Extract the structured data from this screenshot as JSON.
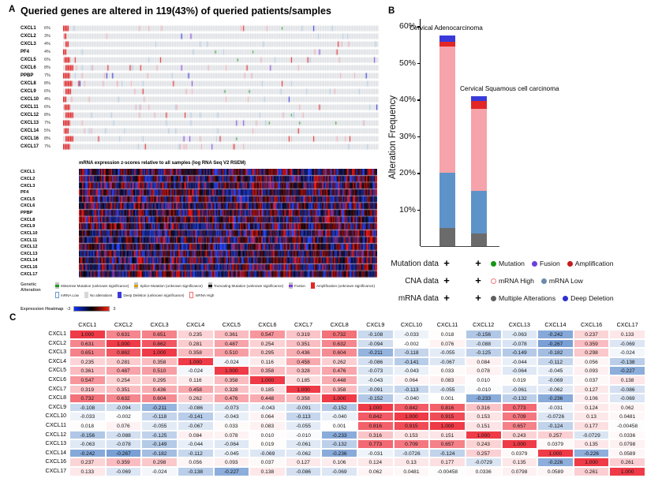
{
  "panelA": {
    "label": "A",
    "title": "Queried genes are altered in 119(43%) of queried patients/samples",
    "genes": [
      {
        "name": "CXCL1",
        "percent": "6%"
      },
      {
        "name": "CXCL2",
        "percent": "3%"
      },
      {
        "name": "CXCL3",
        "percent": "4%"
      },
      {
        "name": "PF4",
        "percent": "4%"
      },
      {
        "name": "CXCL5",
        "percent": "6%"
      },
      {
        "name": "CXCL6",
        "percent": "8%"
      },
      {
        "name": "PPBP",
        "percent": "7%"
      },
      {
        "name": "CXCL8",
        "percent": "8%"
      },
      {
        "name": "CXCL9",
        "percent": "6%"
      },
      {
        "name": "CXCL10",
        "percent": "4%"
      },
      {
        "name": "CXCL11",
        "percent": "6%"
      },
      {
        "name": "CXCL12",
        "percent": "8%"
      },
      {
        "name": "CXCL13",
        "percent": "7%"
      },
      {
        "name": "CXCL14",
        "percent": "5%"
      },
      {
        "name": "CXCL16",
        "percent": "8%"
      },
      {
        "name": "CXCL17",
        "percent": "7%"
      }
    ],
    "heatmap_title": "mRNA expression z-scores relative to all samples (log RNA Seq V2 RSEM)",
    "legend_title": "Genetic Alteration",
    "legend_rows": [
      [
        {
          "label": "Missense Mutation (unknown significance)",
          "style": "band",
          "color": "#1c9a1c"
        },
        {
          "label": "Splice Mutation (unknown significance)",
          "style": "band",
          "color": "#d8a013"
        },
        {
          "label": "Truncating Mutation (unknown significance)",
          "style": "band",
          "color": "#1a1a1a"
        },
        {
          "label": "Fusion",
          "style": "band",
          "color": "#7f3be0"
        },
        {
          "label": "Amplification (unknown significance)",
          "style": "solid",
          "color": "#e22726"
        }
      ],
      [
        {
          "label": "mRNA Low",
          "style": "outline",
          "color": "#6699cc"
        },
        {
          "label": "No alterations",
          "style": "solid",
          "color": "#d7d7d7"
        },
        {
          "label": "Deep Deletion (unknown significance)",
          "style": "solid",
          "color": "#3a3ad9"
        },
        {
          "label": "mRNA High",
          "style": "outline",
          "color": "#f07070"
        }
      ]
    ],
    "expression_label": "Expression Heatmap",
    "scale_min": "-3",
    "scale_max": "3",
    "oncoprint_colors": {
      "no_alteration": "#dadde1",
      "amplification": "#e31a1c",
      "deep_deletion": "#2b2bd5",
      "mrna_high": "#f4a9b1",
      "mrna_low": "#aecbe8",
      "mutation": "#119c11",
      "fusion": "#7f3be0"
    }
  },
  "panelB": {
    "label": "B"
  },
  "panelC": {
    "label": "C"
  },
  "chart_data": [
    {
      "type": "bar",
      "subtype": "stacked",
      "title": "",
      "xlabel": "",
      "ylabel": "Alteration Frequency",
      "ylim": [
        0,
        62
      ],
      "yticks": [
        10,
        20,
        30,
        40,
        50,
        60
      ],
      "ytick_suffix": "%",
      "grid": false,
      "categories": [
        "Cervical Adenocarcinoma",
        "Cervical Squamous cell carcinoma"
      ],
      "totals_percent": [
        57.5,
        41
      ],
      "series": [
        {
          "name": "Multiple Alterations",
          "color": "#6b6b6b",
          "values": [
            5.0,
            3.5
          ]
        },
        {
          "name": "mRNA Low",
          "color": "#5e93c9",
          "values": [
            15.0,
            11.5
          ]
        },
        {
          "name": "mRNA High",
          "color": "#f6a3ab",
          "values": [
            34.5,
            22.5
          ]
        },
        {
          "name": "Amplification",
          "color": "#e22726",
          "values": [
            1.2,
            2.2
          ]
        },
        {
          "name": "Deep Deletion",
          "color": "#3a3ad9",
          "values": [
            1.8,
            1.3
          ]
        }
      ],
      "data_rows": [
        {
          "label": "Mutation data",
          "values": [
            "+",
            "+"
          ]
        },
        {
          "label": "CNA data",
          "values": [
            "+",
            "+"
          ]
        },
        {
          "label": "mRNA data",
          "values": [
            "+",
            "+"
          ]
        }
      ],
      "legend_rows": [
        [
          {
            "label": "Mutation",
            "color": "#159615",
            "style": "solid"
          },
          {
            "label": "Fusion",
            "color": "#6f3ddb",
            "style": "solid"
          },
          {
            "label": "Amplification",
            "color": "#c61b1b",
            "style": "solid"
          }
        ],
        [
          {
            "label": "mRNA High",
            "color": "#ef7a7a",
            "style": "open"
          },
          {
            "label": "mRNA Low",
            "color": "#6d8bab",
            "style": "solid"
          }
        ],
        [
          {
            "label": "Multiple Alterations",
            "color": "#5f5f5f",
            "style": "solid"
          },
          {
            "label": "Deep Deletion",
            "color": "#2f2fd0",
            "style": "solid"
          }
        ]
      ]
    },
    {
      "type": "heatmap",
      "title": "",
      "positive_color": "#ef3b47",
      "negative_color": "#3e76c2",
      "labels": [
        "CXCL1",
        "CXCL2",
        "CXCL3",
        "CXCL4",
        "CXCL5",
        "CXCL6",
        "CXCL7",
        "CXCL8",
        "CXCL9",
        "CXCL10",
        "CXCL11",
        "CXCL12",
        "CXCL13",
        "CXCL14",
        "CXCL16",
        "CXCL17"
      ],
      "values_text": [
        [
          "1.000",
          "0.631",
          "0.651",
          "0.235",
          "0.361",
          "0.547",
          "0.319",
          "0.732",
          "-0.108",
          "-0.033",
          "0.018",
          "-0.156",
          "-0.063",
          "-0.242",
          "0.237",
          "0.133"
        ],
        [
          "0.631",
          "1.000",
          "0.862",
          "0.281",
          "0.487",
          "0.254",
          "0.351",
          "0.632",
          "-0.094",
          "-0.002",
          "0.076",
          "-0.088",
          "-0.078",
          "-0.267",
          "0.359",
          "-0.069"
        ],
        [
          "0.651",
          "0.862",
          "1.000",
          "0.358",
          "0.510",
          "0.295",
          "0.436",
          "0.604",
          "-0.211",
          "-0.118",
          "-0.055",
          "-0.125",
          "-0.149",
          "-0.182",
          "0.298",
          "-0.024"
        ],
        [
          "0.235",
          "0.281",
          "0.358",
          "1.000",
          "-0.024",
          "0.116",
          "0.458",
          "0.262",
          "-0.086",
          "-0.141",
          "-0.067",
          "0.084",
          "-0.044",
          "-0.112",
          "0.056",
          "-0.138"
        ],
        [
          "0.361",
          "0.487",
          "0.510",
          "-0.024",
          "1.000",
          "0.358",
          "0.328",
          "0.476",
          "-0.073",
          "-0.043",
          "0.033",
          "0.078",
          "-0.064",
          "-0.045",
          "0.093",
          "-0.227"
        ],
        [
          "0.547",
          "0.254",
          "0.295",
          "0.116",
          "0.358",
          "1.000",
          "0.185",
          "0.448",
          "-0.043",
          "0.064",
          "0.083",
          "0.010",
          "0.019",
          "-0.069",
          "0.037",
          "0.138"
        ],
        [
          "0.319",
          "0.351",
          "0.436",
          "0.458",
          "0.328",
          "0.185",
          "1.000",
          "0.358",
          "-0.091",
          "-0.113",
          "-0.055",
          "-0.010",
          "-0.061",
          "-0.062",
          "0.127",
          "-0.086"
        ],
        [
          "0.732",
          "0.632",
          "0.604",
          "0.262",
          "0.476",
          "0.448",
          "0.358",
          "1.000",
          "-0.152",
          "-0.040",
          "0.001",
          "-0.233",
          "-0.132",
          "-0.236",
          "0.106",
          "-0.069"
        ],
        [
          "-0.108",
          "-0.094",
          "-0.211",
          "-0.086",
          "-0.073",
          "-0.043",
          "-0.091",
          "-0.152",
          "1.000",
          "0.842",
          "0.816",
          "0.316",
          "0.773",
          "-0.031",
          "0.124",
          "0.062"
        ],
        [
          "-0.033",
          "-0.002",
          "-0.118",
          "-0.141",
          "-0.043",
          "0.064",
          "-0.113",
          "-0.040",
          "0.842",
          "1.000",
          "0.915",
          "0.153",
          "0.709",
          "-0.0726",
          "0.13",
          "0.0481"
        ],
        [
          "0.018",
          "0.076",
          "-0.055",
          "-0.067",
          "0.033",
          "0.083",
          "-0.055",
          "0.001",
          "0.816",
          "0.915",
          "1.000",
          "0.151",
          "0.657",
          "-0.124",
          "0.177",
          "-0.00458"
        ],
        [
          "-0.156",
          "-0.088",
          "-0.125",
          "0.084",
          "0.078",
          "0.010",
          "-0.010",
          "-0.233",
          "0.316",
          "0.153",
          "0.151",
          "1.000",
          "0.243",
          "0.257",
          "-0.0729",
          "0.0336"
        ],
        [
          "-0.063",
          "-0.078",
          "-0.149",
          "-0.044",
          "-0.064",
          "0.019",
          "-0.061",
          "-0.132",
          "0.773",
          "0.709",
          "0.657",
          "0.243",
          "1.000",
          "0.0379",
          "0.135",
          "0.0798"
        ],
        [
          "-0.242",
          "-0.267",
          "-0.182",
          "-0.112",
          "-0.045",
          "-0.069",
          "-0.062",
          "-0.236",
          "-0.031",
          "-0.0726",
          "-0.124",
          "0.257",
          "0.0379",
          "1.000",
          "-0.226",
          "0.0589"
        ],
        [
          "0.237",
          "0.359",
          "0.298",
          "0.056",
          "0.093",
          "0.037",
          "0.127",
          "0.106",
          "0.124",
          "0.13",
          "0.177",
          "-0.0729",
          "0.135",
          "-0.226",
          "1.000",
          "0.261"
        ],
        [
          "0.133",
          "-0.069",
          "-0.024",
          "-0.138",
          "-0.227",
          "0.138",
          "-0.086",
          "-0.069",
          "0.062",
          "0.0481",
          "-0.00458",
          "0.0336",
          "0.0798",
          "0.0589",
          "0.261",
          "1.000"
        ]
      ]
    }
  ]
}
